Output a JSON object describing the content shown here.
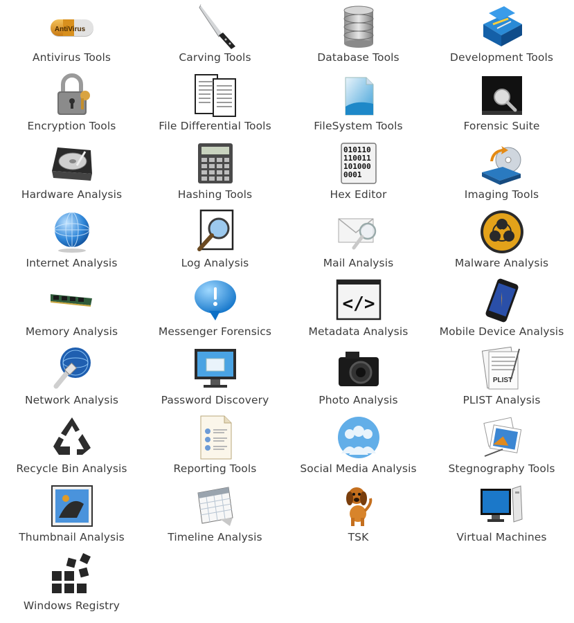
{
  "launcher": {
    "items": [
      {
        "label": "Antivirus Tools",
        "icon": "antivirus-icon"
      },
      {
        "label": "Carving Tools",
        "icon": "knife-icon"
      },
      {
        "label": "Database Tools",
        "icon": "database-icon"
      },
      {
        "label": "Development Tools",
        "icon": "toolbox-icon"
      },
      {
        "label": "Encryption Tools",
        "icon": "padlock-icon"
      },
      {
        "label": "File Differential Tools",
        "icon": "documents-icon"
      },
      {
        "label": "FileSystem Tools",
        "icon": "filesystem-icon"
      },
      {
        "label": "Forensic Suite",
        "icon": "magnifier-monitor-icon"
      },
      {
        "label": "Hardware Analysis",
        "icon": "hard-drive-icon"
      },
      {
        "label": "Hashing Tools",
        "icon": "calculator-icon"
      },
      {
        "label": "Hex Editor",
        "icon": "binary-file-icon",
        "icon_text": [
          "010110",
          "110011",
          "101000",
          "0001"
        ]
      },
      {
        "label": "Imaging Tools",
        "icon": "disk-imaging-icon"
      },
      {
        "label": "Internet Analysis",
        "icon": "globe-icon"
      },
      {
        "label": "Log Analysis",
        "icon": "log-magnifier-icon"
      },
      {
        "label": "Mail Analysis",
        "icon": "mail-magnifier-icon"
      },
      {
        "label": "Malware Analysis",
        "icon": "biohazard-icon"
      },
      {
        "label": "Memory Analysis",
        "icon": "memory-module-icon"
      },
      {
        "label": "Messenger Forensics",
        "icon": "speech-bubble-icon"
      },
      {
        "label": "Metadata Analysis",
        "icon": "code-tag-icon",
        "icon_text": [
          "</>"
        ]
      },
      {
        "label": "Mobile Device Analysis",
        "icon": "smartphone-icon"
      },
      {
        "label": "Network Analysis",
        "icon": "network-cable-icon"
      },
      {
        "label": "Password Discovery",
        "icon": "monitor-icon"
      },
      {
        "label": "Photo Analysis",
        "icon": "camera-icon"
      },
      {
        "label": "PLIST Analysis",
        "icon": "plist-document-icon",
        "icon_text": [
          "PLIST"
        ]
      },
      {
        "label": "Recycle Bin Analysis",
        "icon": "recycle-icon"
      },
      {
        "label": "Reporting Tools",
        "icon": "report-document-icon"
      },
      {
        "label": "Social Media Analysis",
        "icon": "people-icon"
      },
      {
        "label": "Stegnography Tools",
        "icon": "photo-stack-icon"
      },
      {
        "label": "Thumbnail Analysis",
        "icon": "thumbnail-icon"
      },
      {
        "label": "Timeline Analysis",
        "icon": "calendar-icon"
      },
      {
        "label": "TSK",
        "icon": "dog-icon"
      },
      {
        "label": "Virtual Machines",
        "icon": "virtual-monitor-icon"
      },
      {
        "label": "Windows Registry",
        "icon": "registry-blocks-icon"
      }
    ]
  }
}
